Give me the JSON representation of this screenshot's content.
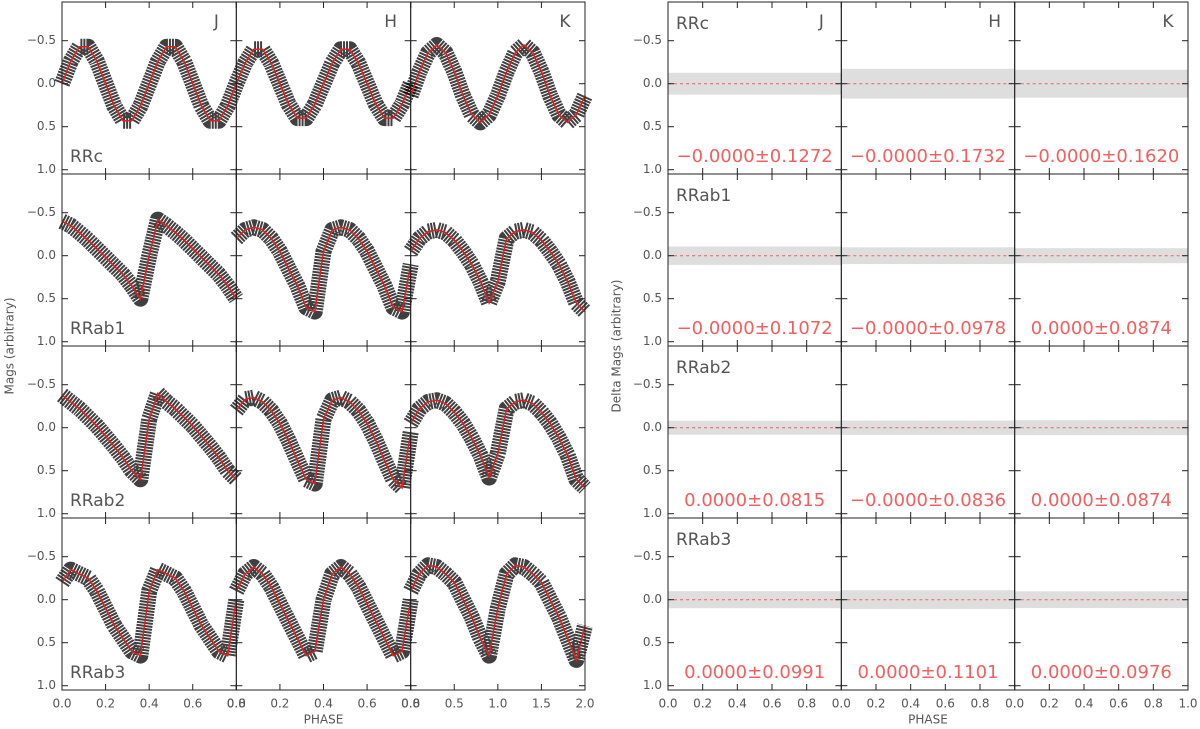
{
  "chart_data": [
    {
      "type": "line",
      "y_label": "Mags (arbitrary)",
      "x_label": "PHASE",
      "ylim": [
        1.05,
        -0.95
      ],
      "yticks": [
        {
          "value": -0.5,
          "label": "−0.5"
        },
        {
          "value": 0,
          "label": "0.0"
        },
        {
          "value": 0.5,
          "label": "0.5"
        },
        {
          "value": 1,
          "label": "1.0"
        }
      ],
      "color": "#e02020",
      "columns": [
        {
          "band": "J",
          "xlim": [
            0,
            0.8
          ],
          "xticks": [
            {
              "value": 0,
              "label": "0.0"
            },
            0.2,
            0.4,
            0.6,
            0.8
          ],
          "x": [
            0,
            0.04,
            0.08,
            0.12,
            0.16,
            0.2,
            0.24,
            0.28,
            0.32,
            0.36,
            0.4,
            0.44,
            0.48,
            0.52,
            0.56,
            0.6,
            0.64,
            0.68,
            0.72,
            0.76,
            0.8
          ]
        },
        {
          "band": "H",
          "xlim": [
            0,
            0.8
          ],
          "xticks": [
            {
              "value": 0,
              "label": "0.0"
            },
            0.2,
            0.4,
            0.6,
            0.8
          ],
          "x": [
            0,
            0.04,
            0.08,
            0.12,
            0.16,
            0.2,
            0.24,
            0.28,
            0.32,
            0.36,
            0.4,
            0.44,
            0.48,
            0.52,
            0.56,
            0.6,
            0.64,
            0.68,
            0.72,
            0.76,
            0.8
          ]
        },
        {
          "band": "K",
          "xlim": [
            0,
            2
          ],
          "xticks": [
            {
              "value": 0,
              "label": "0.0"
            },
            0.5,
            {
              "value": 1,
              "label": "1.0"
            },
            1.5,
            {
              "value": 2,
              "label": "2.0"
            }
          ],
          "x": [
            0,
            0.1,
            0.2,
            0.3,
            0.4,
            0.5,
            0.6,
            0.7,
            0.8,
            0.9,
            1,
            1.1,
            1.2,
            1.3,
            1.4,
            1.5,
            1.6,
            1.7,
            1.8,
            1.9,
            2
          ]
        }
      ],
      "rows": [
        {
          "label": "RRc",
          "curves": [
            [
              0,
              -0.26,
              -0.43,
              -0.43,
              -0.26,
              0,
              0.26,
              0.43,
              0.43,
              0.26,
              0,
              -0.26,
              -0.43,
              -0.43,
              -0.26,
              0,
              0.26,
              0.43,
              0.43,
              0.26,
              0
            ],
            [
              0,
              -0.24,
              -0.4,
              -0.4,
              -0.24,
              0,
              0.24,
              0.4,
              0.4,
              0.24,
              0,
              -0.24,
              -0.4,
              -0.4,
              -0.24,
              0,
              0.24,
              0.4,
              0.4,
              0.24,
              0
            ],
            [
              0.14,
              -0.14,
              -0.36,
              -0.45,
              -0.36,
              -0.14,
              0.14,
              0.36,
              0.45,
              0.36,
              0.14,
              -0.14,
              -0.36,
              -0.45,
              -0.36,
              -0.14,
              0.14,
              0.36,
              0.45,
              0.36,
              0.14
            ]
          ]
        },
        {
          "label": "RRab1",
          "curves": [
            [
              -0.4,
              -0.35,
              -0.27,
              -0.18,
              -0.08,
              0.02,
              0.12,
              0.22,
              0.35,
              0.5,
              0,
              -0.42,
              -0.35,
              -0.27,
              -0.18,
              -0.08,
              0.02,
              0.12,
              0.22,
              0.35,
              0.5
            ],
            [
              -0.2,
              -0.3,
              -0.33,
              -0.3,
              -0.2,
              -0.05,
              0.15,
              0.35,
              0.6,
              0.65,
              -0.05,
              -0.3,
              -0.33,
              -0.3,
              -0.2,
              -0.05,
              0.15,
              0.35,
              0.6,
              0.65,
              0.1
            ],
            [
              -0.05,
              -0.2,
              -0.28,
              -0.3,
              -0.27,
              -0.18,
              -0.05,
              0.1,
              0.3,
              0.55,
              0.3,
              -0.2,
              -0.28,
              -0.3,
              -0.27,
              -0.18,
              -0.05,
              0.1,
              0.3,
              0.55,
              0.65
            ]
          ]
        },
        {
          "label": "RRab2",
          "curves": [
            [
              -0.38,
              -0.3,
              -0.22,
              -0.12,
              -0.02,
              0.1,
              0.22,
              0.35,
              0.5,
              0.6,
              -0.1,
              -0.4,
              -0.3,
              -0.22,
              -0.12,
              -0.02,
              0.1,
              0.22,
              0.35,
              0.5,
              0.6
            ],
            [
              -0.2,
              -0.33,
              -0.35,
              -0.3,
              -0.2,
              -0.05,
              0.15,
              0.38,
              0.6,
              0.65,
              -0.1,
              -0.32,
              -0.35,
              -0.3,
              -0.2,
              -0.05,
              0.15,
              0.38,
              0.6,
              0.7,
              0.05
            ],
            [
              -0.05,
              -0.22,
              -0.3,
              -0.32,
              -0.28,
              -0.18,
              -0.05,
              0.12,
              0.32,
              0.58,
              0.3,
              -0.22,
              -0.3,
              -0.32,
              -0.28,
              -0.18,
              -0.05,
              0.12,
              0.32,
              0.6,
              0.7
            ]
          ]
        },
        {
          "label": "RRab3",
          "curves": [
            [
              -0.2,
              -0.35,
              -0.3,
              -0.25,
              -0.1,
              0.1,
              0.3,
              0.45,
              0.6,
              0.65,
              -0.1,
              -0.35,
              -0.3,
              -0.25,
              -0.1,
              0.1,
              0.3,
              0.45,
              0.6,
              0.65,
              0
            ],
            [
              -0.1,
              -0.3,
              -0.38,
              -0.3,
              -0.15,
              0.05,
              0.25,
              0.45,
              0.65,
              0.6,
              0,
              -0.3,
              -0.38,
              -0.3,
              -0.15,
              0.05,
              0.25,
              0.45,
              0.65,
              0.6,
              0
            ],
            [
              -0.1,
              -0.3,
              -0.4,
              -0.38,
              -0.3,
              -0.2,
              0,
              0.2,
              0.45,
              0.65,
              0.1,
              -0.3,
              -0.4,
              -0.38,
              -0.3,
              -0.2,
              0,
              0.2,
              0.45,
              0.7,
              0.3
            ]
          ]
        }
      ]
    },
    {
      "type": "residual",
      "y_label": "Delta Mags (arbitrary)",
      "x_label": "PHASE",
      "ylim": [
        1.05,
        -0.95
      ],
      "yticks": [
        {
          "value": -0.5,
          "label": "−0.5"
        },
        {
          "value": 0,
          "label": "0.0"
        },
        {
          "value": 0.5,
          "label": "0.5"
        },
        {
          "value": 1,
          "label": "1.0"
        }
      ],
      "color": "#f06060",
      "columns": [
        {
          "band": "J",
          "xlim": [
            0,
            1
          ],
          "xticks": [
            {
              "value": 0,
              "label": "0.0"
            },
            0.2,
            0.4,
            0.6,
            0.8
          ]
        },
        {
          "band": "H",
          "xlim": [
            0,
            1
          ],
          "xticks": [
            {
              "value": 0,
              "label": "0.0"
            },
            0.2,
            0.4,
            0.6,
            0.8
          ]
        },
        {
          "band": "K",
          "xlim": [
            0,
            1
          ],
          "xticks": [
            {
              "value": 0,
              "label": "0.0"
            },
            0.2,
            0.4,
            0.6,
            0.8,
            {
              "value": 1,
              "label": "1.0"
            }
          ]
        }
      ],
      "rows": [
        {
          "label": "RRc",
          "stats": [
            {
              "mean": 0,
              "sigma": 0.1272,
              "value_label": "−0.0000±0.1272"
            },
            {
              "mean": 0,
              "sigma": 0.1732,
              "value_label": "−0.0000±0.1732"
            },
            {
              "mean": 0,
              "sigma": 0.162,
              "value_label": "−0.0000±0.1620"
            }
          ]
        },
        {
          "label": "RRab1",
          "stats": [
            {
              "mean": 0,
              "sigma": 0.1072,
              "value_label": "−0.0000±0.1072"
            },
            {
              "mean": 0,
              "sigma": 0.0978,
              "value_label": "−0.0000±0.0978"
            },
            {
              "mean": 0,
              "sigma": 0.0874,
              "value_label": "0.0000±0.0874"
            }
          ]
        },
        {
          "label": "RRab2",
          "stats": [
            {
              "mean": 0,
              "sigma": 0.0815,
              "value_label": "0.0000±0.0815"
            },
            {
              "mean": 0,
              "sigma": 0.0836,
              "value_label": "−0.0000±0.0836"
            },
            {
              "mean": 0,
              "sigma": 0.0874,
              "value_label": "0.0000±0.0874"
            }
          ]
        },
        {
          "label": "RRab3",
          "stats": [
            {
              "mean": 0,
              "sigma": 0.0991,
              "value_label": "0.0000±0.0991"
            },
            {
              "mean": 0,
              "sigma": 0.1101,
              "value_label": "0.0000±0.1101"
            },
            {
              "mean": 0,
              "sigma": 0.0976,
              "value_label": "0.0000±0.0976"
            }
          ]
        }
      ]
    }
  ]
}
